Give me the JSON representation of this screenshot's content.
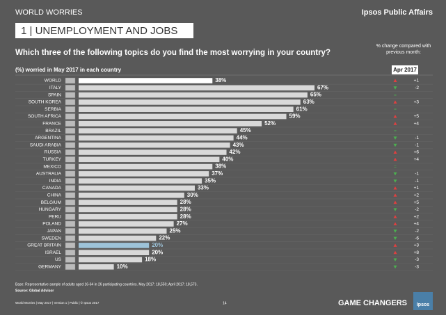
{
  "header": {
    "section": "WORLD WORRIES",
    "brand": "Ipsos Public Affairs",
    "topic": "1 | UNEMPLOYMENT AND JOBS"
  },
  "chart_data": {
    "type": "bar",
    "orientation": "horizontal",
    "title": "Which three of the following topics do you find the most worrying in your country?",
    "subtitle": "(%) worried in May 2017 in each country",
    "change_title": "% change compared with previous month:",
    "change_period": "Apr 2017",
    "categories": [
      "WORLD",
      "ITALY",
      "SPAIN",
      "SOUTH KOREA",
      "SERBIA",
      "SOUTH AFRICA",
      "FRANCE",
      "BRAZIL",
      "ARGENTINA",
      "SAUDI ARABIA",
      "RUSSIA",
      "TURKEY",
      "MEXICO",
      "AUSTRALIA",
      "INDIA",
      "CANADA",
      "CHINA",
      "BELGIUM",
      "HUNGARY",
      "PERU",
      "POLAND",
      "JAPAN",
      "SWEDEN",
      "GREAT BRITAIN",
      "ISRAEL",
      "US",
      "GERMANY"
    ],
    "values": [
      38,
      67,
      65,
      63,
      61,
      59,
      52,
      45,
      44,
      43,
      42,
      40,
      38,
      37,
      35,
      33,
      30,
      28,
      28,
      28,
      27,
      25,
      22,
      20,
      20,
      18,
      10
    ],
    "value_labels": [
      "38%",
      "67%",
      "65%",
      "63%",
      "61%",
      "59%",
      "52%",
      "45%",
      "44%",
      "43%",
      "42%",
      "40%",
      "38%",
      "37%",
      "35%",
      "33%",
      "30%",
      "28%",
      "28%",
      "28%",
      "27%",
      "25%",
      "22%",
      "20%",
      "20%",
      "18%",
      "10%"
    ],
    "changes": [
      1,
      -2,
      0,
      3,
      0,
      5,
      4,
      0,
      -1,
      -1,
      6,
      4,
      0,
      -1,
      -1,
      1,
      2,
      5,
      -2,
      2,
      4,
      -2,
      -6,
      3,
      8,
      -3,
      -3
    ],
    "change_labels": [
      "+1",
      "-2",
      "=",
      "+3",
      "=",
      "+5",
      "+4",
      "=",
      "-1",
      "-1",
      "+6",
      "+4",
      "=",
      "-1",
      "-1",
      "+1",
      "+2",
      "+5",
      "-2",
      "+2",
      "+4",
      "-2",
      "-6",
      "+3",
      "+8",
      "-3",
      "-3"
    ],
    "color": "#d9d9d9",
    "highlight": {
      "WORLD": "#ffffff",
      "GREAT BRITAIN": "#9dc3d9"
    },
    "up_color": "#e04040",
    "down_color": "#4caf50",
    "xlim": [
      0,
      100
    ]
  },
  "footer": {
    "base": "Base: Representative sample of adults aged 16-64 in 26 participating countries. May 2017: 18,550; April 2017: 18,573.",
    "source": "Source: Global Advisor",
    "meta": "World Worries | May 2017 | Version 1 | Public | © Ipsos 2017",
    "page": "14",
    "tagline": "GAME CHANGERS",
    "logo": "Ipsos"
  }
}
